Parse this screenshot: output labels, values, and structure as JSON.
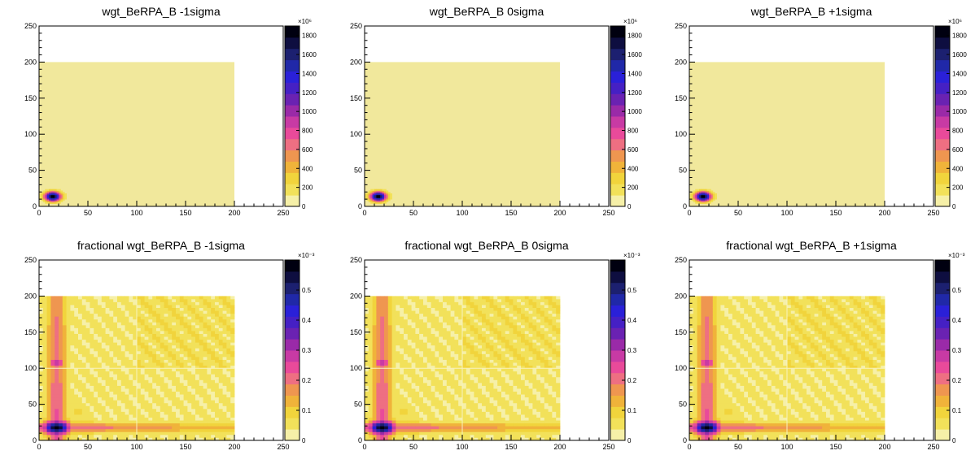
{
  "palette": [
    "#f6f0a8",
    "#f2e15a",
    "#f1d43c",
    "#f0b33a",
    "#ef9650",
    "#ee6f82",
    "#e94a9a",
    "#c83aa4",
    "#9a2aa8",
    "#6a22b2",
    "#4520c4",
    "#2a20d8",
    "#2028a8",
    "#1c2070",
    "#0e0e40",
    "#000010"
  ],
  "charts": [
    {
      "title": "wgt_BeRPA_B -1sigma",
      "chart_data": {
        "type": "heatmap",
        "title": "wgt_BeRPA_B -1sigma",
        "xlim": [
          0,
          250
        ],
        "ylim": [
          0,
          250
        ],
        "xticks": [
          "0",
          "50",
          "100",
          "150",
          "200",
          "250"
        ],
        "yticks": [
          "0",
          "50",
          "100",
          "150",
          "200",
          "250"
        ],
        "filled_region": {
          "x": [
            0,
            200
          ],
          "y": [
            0,
            200
          ],
          "level": 0
        },
        "hotspot": {
          "x": 14,
          "y": 14,
          "peak": 1850
        },
        "colorbar": {
          "exponent": "×10⁶",
          "ticks": [
            "0",
            "200",
            "400",
            "600",
            "800",
            "1000",
            "1200",
            "1400",
            "1600",
            "1800"
          ],
          "max": 1900
        }
      }
    },
    {
      "title": "wgt_BeRPA_B 0sigma",
      "chart_data": {
        "type": "heatmap",
        "title": "wgt_BeRPA_B 0sigma",
        "xlim": [
          0,
          250
        ],
        "ylim": [
          0,
          250
        ],
        "xticks": [
          "0",
          "50",
          "100",
          "150",
          "200",
          "250"
        ],
        "yticks": [
          "0",
          "50",
          "100",
          "150",
          "200",
          "250"
        ],
        "filled_region": {
          "x": [
            0,
            200
          ],
          "y": [
            0,
            200
          ],
          "level": 0
        },
        "hotspot": {
          "x": 14,
          "y": 14,
          "peak": 1850
        },
        "colorbar": {
          "exponent": "×10⁶",
          "ticks": [
            "0",
            "200",
            "400",
            "600",
            "800",
            "1000",
            "1200",
            "1400",
            "1600",
            "1800"
          ],
          "max": 1900
        }
      }
    },
    {
      "title": "wgt_BeRPA_B +1sigma",
      "chart_data": {
        "type": "heatmap",
        "title": "wgt_BeRPA_B +1sigma",
        "xlim": [
          0,
          250
        ],
        "ylim": [
          0,
          250
        ],
        "xticks": [
          "0",
          "50",
          "100",
          "150",
          "200",
          "250"
        ],
        "yticks": [
          "0",
          "50",
          "100",
          "150",
          "200",
          "250"
        ],
        "filled_region": {
          "x": [
            0,
            200
          ],
          "y": [
            0,
            200
          ],
          "level": 0
        },
        "hotspot": {
          "x": 14,
          "y": 14,
          "peak": 1850
        },
        "colorbar": {
          "exponent": "×10⁶",
          "ticks": [
            "0",
            "200",
            "400",
            "600",
            "800",
            "1000",
            "1200",
            "1400",
            "1600",
            "1800"
          ],
          "max": 1900
        }
      }
    },
    {
      "title": "fractional wgt_BeRPA_B -1sigma",
      "chart_data": {
        "type": "heatmap",
        "title": "fractional wgt_BeRPA_B -1sigma",
        "xlim": [
          0,
          250
        ],
        "ylim": [
          0,
          250
        ],
        "xticks": [
          "0",
          "50",
          "100",
          "150",
          "200",
          "250"
        ],
        "yticks": [
          "0",
          "50",
          "100",
          "150",
          "200",
          "250"
        ],
        "filled_region": {
          "x": [
            0,
            200
          ],
          "y": [
            0,
            200
          ]
        },
        "hotspot": {
          "x": 18,
          "y": 18,
          "peak": 0.58
        },
        "secondary_hotspot": {
          "x": 18,
          "y": 108,
          "peak": 0.3
        },
        "colorbar": {
          "exponent": "×10⁻³",
          "ticks": [
            "0",
            "0.1",
            "0.2",
            "0.3",
            "0.4",
            "0.5"
          ],
          "max": 0.6
        }
      }
    },
    {
      "title": "fractional wgt_BeRPA_B 0sigma",
      "chart_data": {
        "type": "heatmap",
        "title": "fractional wgt_BeRPA_B 0sigma",
        "xlim": [
          0,
          250
        ],
        "ylim": [
          0,
          250
        ],
        "xticks": [
          "0",
          "50",
          "100",
          "150",
          "200",
          "250"
        ],
        "yticks": [
          "0",
          "50",
          "100",
          "150",
          "200",
          "250"
        ],
        "filled_region": {
          "x": [
            0,
            200
          ],
          "y": [
            0,
            200
          ]
        },
        "hotspot": {
          "x": 18,
          "y": 18,
          "peak": 0.58
        },
        "secondary_hotspot": {
          "x": 18,
          "y": 108,
          "peak": 0.3
        },
        "colorbar": {
          "exponent": "×10⁻³",
          "ticks": [
            "0",
            "0.1",
            "0.2",
            "0.3",
            "0.4",
            "0.5"
          ],
          "max": 0.6
        }
      }
    },
    {
      "title": "fractional wgt_BeRPA_B +1sigma",
      "chart_data": {
        "type": "heatmap",
        "title": "fractional wgt_BeRPA_B +1sigma",
        "xlim": [
          0,
          250
        ],
        "ylim": [
          0,
          250
        ],
        "xticks": [
          "0",
          "50",
          "100",
          "150",
          "200",
          "250"
        ],
        "yticks": [
          "0",
          "50",
          "100",
          "150",
          "200",
          "250"
        ],
        "filled_region": {
          "x": [
            0,
            200
          ],
          "y": [
            0,
            200
          ]
        },
        "hotspot": {
          "x": 18,
          "y": 18,
          "peak": 0.58
        },
        "secondary_hotspot": {
          "x": 18,
          "y": 108,
          "peak": 0.3
        },
        "colorbar": {
          "exponent": "×10⁻³",
          "ticks": [
            "0",
            "0.1",
            "0.2",
            "0.3",
            "0.4",
            "0.5"
          ],
          "max": 0.6
        }
      }
    }
  ]
}
